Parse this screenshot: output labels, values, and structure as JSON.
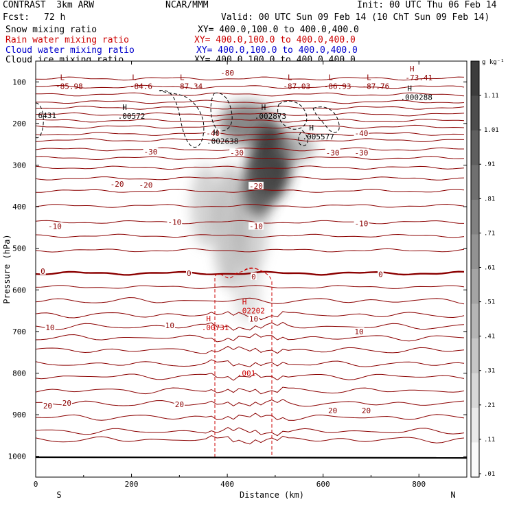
{
  "header": {
    "left1": "CONTRAST  3km ARW",
    "center1": "NCAR/MMM",
    "right1": "Init: 00 UTC Thu 06 Feb 14",
    "left2_label": "Fcst:",
    "left2_value": "72 h",
    "right2": "Valid: 00 UTC Sun 09 Feb 14 (10 ChT Sun 09 Feb 14)",
    "fields": [
      {
        "name": "Snow mixing ratio",
        "xy": "XY= 400.0,100.0 to 400.0,400.0",
        "color": "#000000"
      },
      {
        "name": "Rain water mixing ratio",
        "xy": "XY= 400.0,100.0 to 400.0,400.0",
        "color": "#cc0000"
      },
      {
        "name": "Cloud water mixing ratio",
        "xy": "XY= 400.0,100.0 to 400.0,400.0",
        "color": "#0000cc"
      },
      {
        "name": "Cloud ice mixing ratio",
        "xy": "XY= 400.0,100.0 to 400.0,400.0",
        "color": "#000000"
      }
    ]
  },
  "chart_data": {
    "type": "vertical-cross-section",
    "xlabel": "Distance (km)",
    "ylabel": "Pressure (hPa)",
    "xlim": [
      0,
      900
    ],
    "ylim": [
      1050,
      50
    ],
    "x_ticks": [
      "0",
      "200",
      "400",
      "600",
      "800"
    ],
    "x_tick_values": [
      0,
      200,
      400,
      600,
      800
    ],
    "y_ticks": [
      "100",
      "200",
      "300",
      "400",
      "500",
      "600",
      "700",
      "800",
      "900",
      "1000"
    ],
    "y_tick_values": [
      100,
      200,
      300,
      400,
      500,
      600,
      700,
      800,
      900,
      1000
    ],
    "x_end_labels": {
      "left": "S",
      "right": "N"
    },
    "colorbar": {
      "unit": "g kg⁻¹",
      "ticks": [
        "1.11",
        "1.01",
        ".91",
        ".81",
        ".71",
        ".61",
        ".51",
        ".41",
        ".31",
        ".21",
        ".11",
        ".01"
      ],
      "tick_values": [
        1.11,
        1.01,
        0.91,
        0.81,
        0.71,
        0.61,
        0.51,
        0.41,
        0.31,
        0.21,
        0.11,
        0.01
      ],
      "range": [
        0,
        1.21
      ]
    },
    "temperature_contours_C": {
      "levels": [
        -80,
        -40,
        -30,
        -20,
        -10,
        0,
        10,
        20
      ],
      "zero_isotherm_hPa": 560,
      "isotherms_hPa": [
        92,
        112,
        130,
        148,
        162,
        178,
        193,
        208,
        225,
        240,
        262,
        283,
        306,
        332,
        362,
        398,
        437,
        470,
        505,
        560,
        593,
        626,
        660,
        688,
        715,
        745,
        778,
        808,
        842,
        873,
        906,
        940,
        960
      ],
      "labels": [
        {
          "text": "-80",
          "x": 400,
          "p": 78
        },
        {
          "text": "-40",
          "x": 370,
          "p": 223
        },
        {
          "text": "-40",
          "x": 680,
          "p": 223
        },
        {
          "text": "-30",
          "x": 240,
          "p": 268
        },
        {
          "text": "-30",
          "x": 420,
          "p": 270
        },
        {
          "text": "-30",
          "x": 620,
          "p": 270
        },
        {
          "text": "-30",
          "x": 680,
          "p": 270
        },
        {
          "text": "-20",
          "x": 170,
          "p": 345
        },
        {
          "text": "-20",
          "x": 230,
          "p": 348
        },
        {
          "text": "-20",
          "x": 460,
          "p": 350
        },
        {
          "text": "-10",
          "x": 40,
          "p": 447
        },
        {
          "text": "-10",
          "x": 290,
          "p": 437
        },
        {
          "text": "-10",
          "x": 460,
          "p": 447
        },
        {
          "text": "-10",
          "x": 680,
          "p": 440
        },
        {
          "text": "0",
          "x": 15,
          "p": 555
        },
        {
          "text": "0",
          "x": 320,
          "p": 560
        },
        {
          "text": "0",
          "x": 455,
          "p": 568
        },
        {
          "text": "0",
          "x": 720,
          "p": 562
        },
        {
          "text": "10",
          "x": 30,
          "p": 690
        },
        {
          "text": "10",
          "x": 280,
          "p": 685
        },
        {
          "text": "10",
          "x": 455,
          "p": 670
        },
        {
          "text": "10",
          "x": 675,
          "p": 700
        },
        {
          "text": "20",
          "x": 25,
          "p": 878
        },
        {
          "text": "20",
          "x": 65,
          "p": 872
        },
        {
          "text": "20",
          "x": 300,
          "p": 875
        },
        {
          "text": "20",
          "x": 620,
          "p": 890
        },
        {
          "text": "20",
          "x": 690,
          "p": 890
        }
      ]
    },
    "highs_lows": [
      {
        "type": "L",
        "value": "-85.98",
        "x": 70,
        "p": 100
      },
      {
        "type": "L",
        "value": "-84.6",
        "x": 220,
        "p": 100
      },
      {
        "type": "L",
        "value": "-87.34",
        "x": 320,
        "p": 100
      },
      {
        "type": "L",
        "value": "-87.03",
        "x": 545,
        "p": 100
      },
      {
        "type": "L",
        "value": "-86.93",
        "x": 630,
        "p": 100
      },
      {
        "type": "L",
        "value": "-87.76",
        "x": 710,
        "p": 100
      },
      {
        "type": "H",
        "value": "-73.41",
        "x": 800,
        "p": 80
      },
      {
        "type": "H",
        "value": ".000288",
        "x": 795,
        "p": 127
      },
      {
        "type": "H",
        "value": ".00572",
        "x": 200,
        "p": 172
      },
      {
        "type": "H",
        "value": ".002873",
        "x": 490,
        "p": 172
      },
      {
        "type": "H",
        "value": ".005577",
        "x": 590,
        "p": 222
      },
      {
        "type": "H",
        "value": ".002638",
        "x": 390,
        "p": 232
      },
      {
        "type": "H",
        "value": ".02202",
        "x": 450,
        "p": 640
      },
      {
        "type": "H",
        "value": ".00731",
        "x": 375,
        "p": 680
      }
    ],
    "edge_labels": [
      {
        "value": "6431",
        "x": 5,
        "p": 187
      }
    ],
    "rain_contour_labels": [
      {
        "value": ".001",
        "x": 440,
        "p": 800
      }
    ]
  }
}
